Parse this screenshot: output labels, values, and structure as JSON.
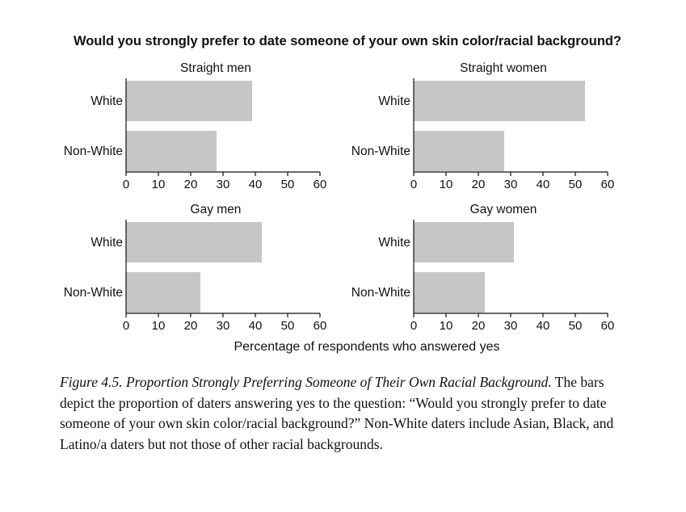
{
  "figure": {
    "main_title": "Would you strongly prefer to date someone of your own skin color/racial background?",
    "shared_xlabel": "Percentage of respondents who answered yes"
  },
  "chart_data": [
    {
      "type": "bar",
      "orientation": "horizontal",
      "title": "Straight men",
      "categories": [
        "White",
        "Non-White"
      ],
      "values": [
        39,
        28
      ],
      "xlim": [
        0,
        60
      ],
      "xticks": [
        0,
        10,
        20,
        30,
        40,
        50,
        60
      ],
      "bar_color": "#c6c6c6"
    },
    {
      "type": "bar",
      "orientation": "horizontal",
      "title": "Straight women",
      "categories": [
        "White",
        "Non-White"
      ],
      "values": [
        53,
        28
      ],
      "xlim": [
        0,
        60
      ],
      "xticks": [
        0,
        10,
        20,
        30,
        40,
        50,
        60
      ],
      "bar_color": "#c6c6c6"
    },
    {
      "type": "bar",
      "orientation": "horizontal",
      "title": "Gay men",
      "categories": [
        "White",
        "Non-White"
      ],
      "values": [
        42,
        23
      ],
      "xlim": [
        0,
        60
      ],
      "xticks": [
        0,
        10,
        20,
        30,
        40,
        50,
        60
      ],
      "bar_color": "#c6c6c6"
    },
    {
      "type": "bar",
      "orientation": "horizontal",
      "title": "Gay women",
      "categories": [
        "White",
        "Non-White"
      ],
      "values": [
        31,
        22
      ],
      "xlim": [
        0,
        60
      ],
      "xticks": [
        0,
        10,
        20,
        30,
        40,
        50,
        60
      ],
      "bar_color": "#c6c6c6"
    }
  ],
  "caption": {
    "figure_title": "Figure 4.5.  Proportion Strongly Preferring Someone of Their Own Racial Background.",
    "body": "The bars depict the proportion of daters answering yes to the question: “Would you strongly prefer to date someone of your own skin color/racial background?” Non-White daters include Asian, Black, and Latino/a daters but not those of other racial backgrounds."
  }
}
